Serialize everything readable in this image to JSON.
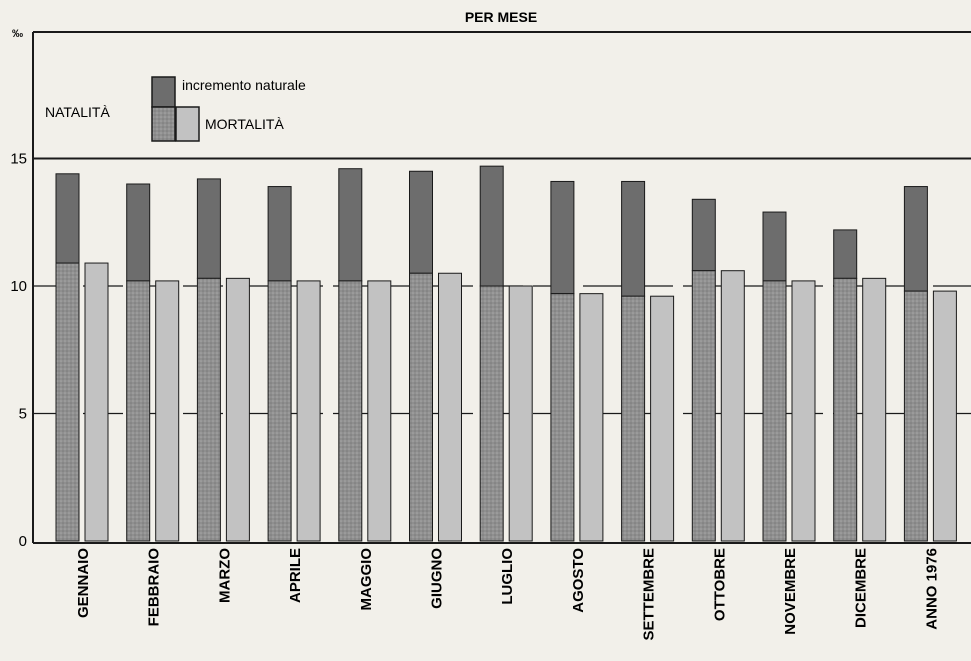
{
  "chart_data": {
    "type": "bar",
    "title": "PER MESE",
    "ylabel": "‰",
    "ylim": [
      0,
      17
    ],
    "yticks": [
      0,
      5,
      10,
      15
    ],
    "grid": true,
    "legend_position": "top-left",
    "categories": [
      "GENNAIO",
      "FEBBRAIO",
      "MARZO",
      "APRILE",
      "MAGGIO",
      "GIUGNO",
      "LUGLIO",
      "AGOSTO",
      "SETTEMBRE",
      "OTTOBRE",
      "NOVEMBRE",
      "DICEMBRE",
      "ANNO 1976"
    ],
    "series": [
      {
        "name": "NATALITÀ",
        "values": [
          14.4,
          14.0,
          14.2,
          13.9,
          14.6,
          14.5,
          14.7,
          14.1,
          14.1,
          13.4,
          12.9,
          12.2,
          13.9
        ]
      },
      {
        "name": "MORTALITÀ",
        "values": [
          10.9,
          10.2,
          10.3,
          10.2,
          10.2,
          10.5,
          10.0,
          9.7,
          9.6,
          10.6,
          10.2,
          10.3,
          9.8
        ]
      }
    ],
    "legend": {
      "natalita": "NATALITÀ",
      "mortalita": "MORTALITÀ",
      "incremento": "incremento naturale"
    },
    "colors": {
      "natalita_top": "#6d6d6d",
      "natalita_bottom": "#8f8f8f",
      "mortalita": "#c2c2c2",
      "stroke": "#1a1a1a"
    }
  }
}
